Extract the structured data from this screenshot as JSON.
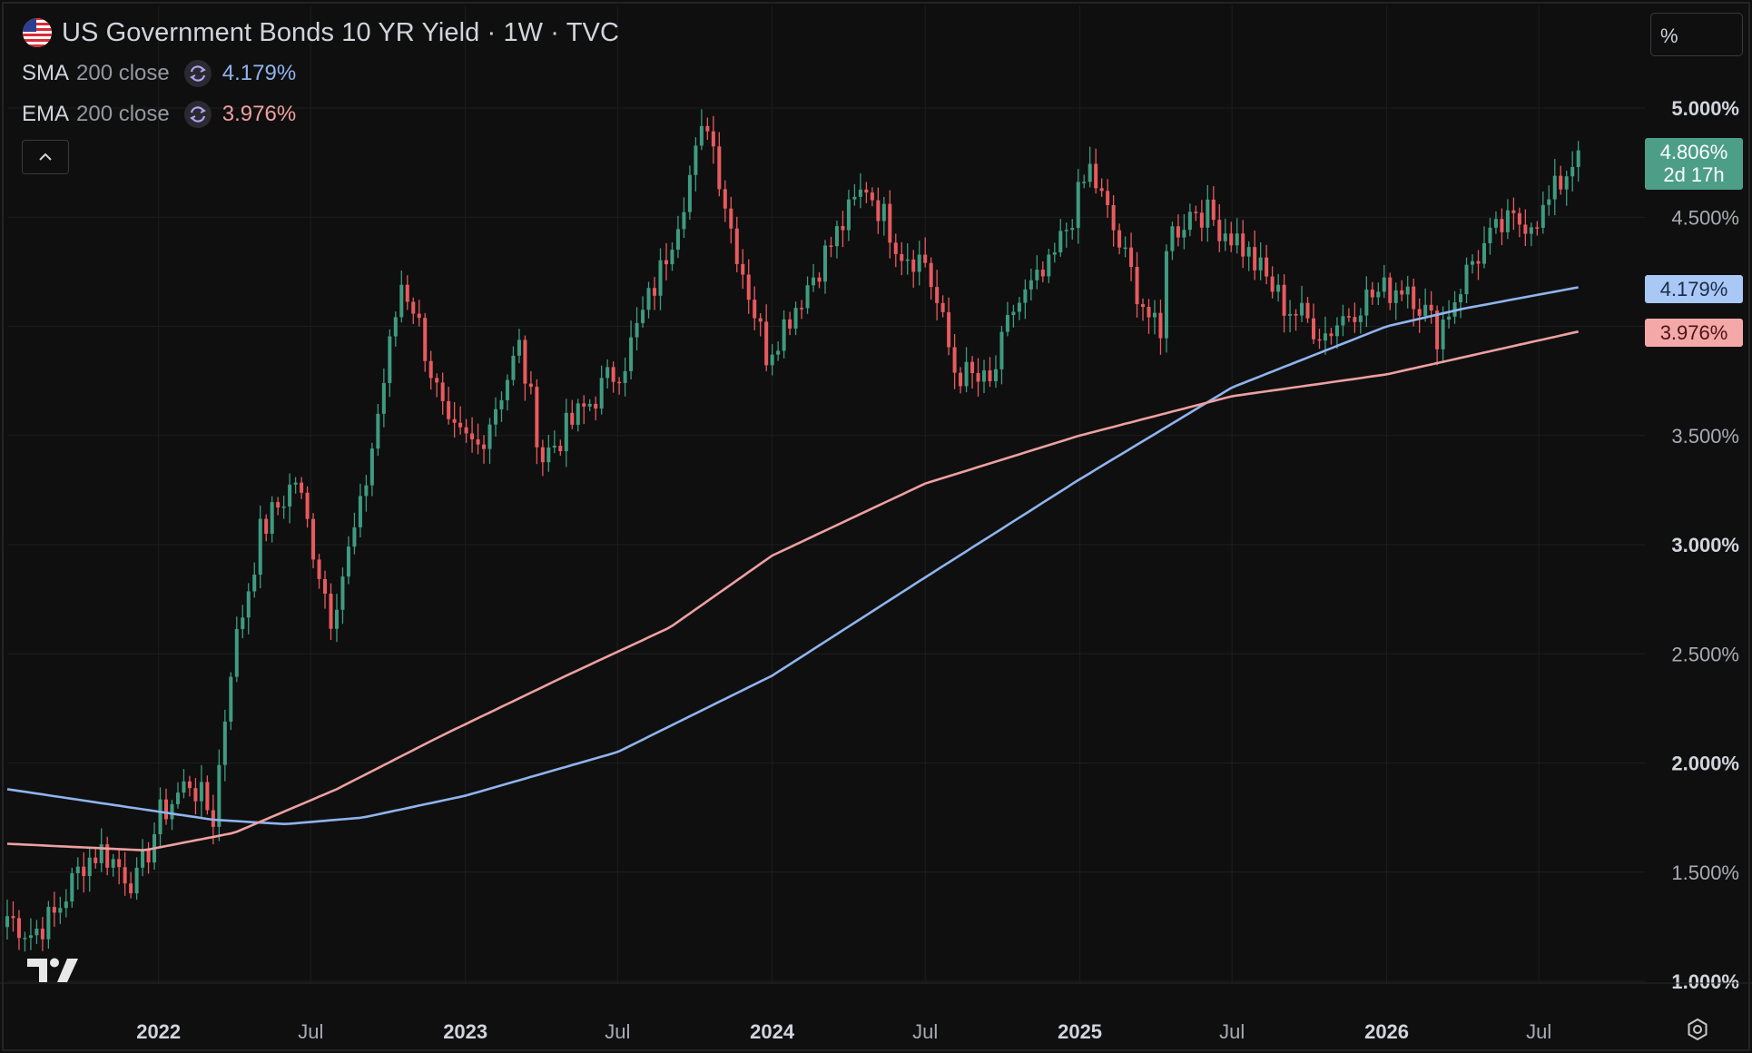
{
  "header": {
    "title": "US Government Bonds 10 YR Yield · 1W · TVC",
    "flag_icon": "us-flag-icon"
  },
  "indicators": [
    {
      "name": "SMA",
      "params": "200 close",
      "value": "4.179%",
      "color": "#8fb4ee",
      "icon": "sync-icon"
    },
    {
      "name": "EMA",
      "params": "200 close",
      "value": "3.976%",
      "color": "#eea0a0",
      "icon": "sync-icon"
    }
  ],
  "controls": {
    "collapse_icon": "chevron-up-icon",
    "unit_label": "%",
    "settings_icon": "gear-icon",
    "logo_icon": "tradingview-logo-icon"
  },
  "price_badge": {
    "value": "4.806%",
    "countdown": "2d 17h",
    "color": "#4c9f86"
  },
  "sma_badge": {
    "value": "4.179%"
  },
  "ema_badge": {
    "value": "3.976%"
  },
  "colors": {
    "background": "#0f0f0f",
    "grid": "#1e1e1e",
    "up": "#3f9b80",
    "down": "#e85a5f",
    "sma": "#8fb4ee",
    "ema": "#eea0a0"
  },
  "chart_data": {
    "type": "candlestick",
    "interval": "1W",
    "ylim": [
      1.0,
      5.0
    ],
    "y_ticks": [
      "1.000%",
      "1.500%",
      "2.000%",
      "2.500%",
      "3.000%",
      "3.500%",
      "4.000%",
      "4.500%",
      "5.000%"
    ],
    "y_tick_bold": [
      true,
      false,
      true,
      false,
      true,
      false,
      false,
      false,
      true
    ],
    "x_ticks": [
      {
        "label": "2022",
        "date": "2022-01-01",
        "bold": true
      },
      {
        "label": "Jul",
        "date": "2022-07-01",
        "bold": false
      },
      {
        "label": "2023",
        "date": "2023-01-01",
        "bold": true
      },
      {
        "label": "Jul",
        "date": "2023-07-01",
        "bold": false
      },
      {
        "label": "2024",
        "date": "2024-01-01",
        "bold": true
      },
      {
        "label": "Jul",
        "date": "2024-07-01",
        "bold": false
      },
      {
        "label": "2025",
        "date": "2025-01-01",
        "bold": true
      },
      {
        "label": "Jul",
        "date": "2025-07-01",
        "bold": false
      },
      {
        "label": "2026",
        "date": "2026-01-01",
        "bold": true
      },
      {
        "label": "Jul",
        "date": "2026-07-01",
        "bold": false
      }
    ],
    "x_range": [
      "2021-07-05",
      "2026-12-26"
    ],
    "first_bar": "2021-07-05",
    "close_anchors": [
      [
        "2021-07-05",
        1.3
      ],
      [
        "2021-08-02",
        1.22
      ],
      [
        "2021-08-30",
        1.3
      ],
      [
        "2021-10-04",
        1.55
      ],
      [
        "2021-10-25",
        1.6
      ],
      [
        "2021-12-06",
        1.45
      ],
      [
        "2022-01-03",
        1.76
      ],
      [
        "2022-02-07",
        1.92
      ],
      [
        "2022-03-07",
        1.75
      ],
      [
        "2022-03-28",
        2.45
      ],
      [
        "2022-05-02",
        3.05
      ],
      [
        "2022-06-13",
        3.3
      ],
      [
        "2022-07-25",
        2.68
      ],
      [
        "2022-08-29",
        3.15
      ],
      [
        "2022-10-17",
        4.2
      ],
      [
        "2022-10-31",
        4.1
      ],
      [
        "2022-12-12",
        3.5
      ],
      [
        "2023-01-16",
        3.45
      ],
      [
        "2023-03-06",
        3.9
      ],
      [
        "2023-04-03",
        3.4
      ],
      [
        "2023-05-29",
        3.65
      ],
      [
        "2023-07-10",
        3.85
      ],
      [
        "2023-08-21",
        4.25
      ],
      [
        "2023-10-16",
        4.95
      ],
      [
        "2023-11-13",
        4.45
      ],
      [
        "2023-12-25",
        3.88
      ],
      [
        "2024-01-29",
        4.1
      ],
      [
        "2024-04-22",
        4.65
      ],
      [
        "2024-06-03",
        4.35
      ],
      [
        "2024-07-01",
        4.3
      ],
      [
        "2024-08-05",
        3.8
      ],
      [
        "2024-09-16",
        3.72
      ],
      [
        "2024-10-14",
        4.08
      ],
      [
        "2024-11-25",
        4.25
      ],
      [
        "2025-01-13",
        4.72
      ],
      [
        "2025-02-24",
        4.3
      ],
      [
        "2025-04-07",
        3.92
      ],
      [
        "2025-04-14",
        4.4
      ],
      [
        "2025-05-19",
        4.55
      ],
      [
        "2025-07-07",
        4.4
      ],
      [
        "2025-09-01",
        4.1
      ],
      [
        "2025-10-20",
        3.97
      ],
      [
        "2025-12-01",
        4.12
      ],
      [
        "2026-01-26",
        4.2
      ],
      [
        "2026-03-02",
        3.97
      ],
      [
        "2026-04-13",
        4.3
      ],
      [
        "2026-05-18",
        4.45
      ],
      [
        "2026-07-06",
        4.52
      ],
      [
        "2026-08-17",
        4.806
      ]
    ],
    "sma_anchors": [
      [
        "2021-07-05",
        1.88
      ],
      [
        "2022-03-07",
        1.74
      ],
      [
        "2022-06-01",
        1.72
      ],
      [
        "2022-09-01",
        1.75
      ],
      [
        "2023-01-01",
        1.85
      ],
      [
        "2023-07-01",
        2.05
      ],
      [
        "2024-01-01",
        2.4
      ],
      [
        "2024-07-01",
        2.85
      ],
      [
        "2025-01-01",
        3.3
      ],
      [
        "2025-07-01",
        3.72
      ],
      [
        "2026-01-01",
        4.0
      ],
      [
        "2026-04-01",
        4.08
      ],
      [
        "2026-08-17",
        4.179
      ]
    ],
    "ema_anchors": [
      [
        "2021-07-05",
        1.63
      ],
      [
        "2021-12-15",
        1.6
      ],
      [
        "2022-04-01",
        1.68
      ],
      [
        "2022-08-01",
        1.88
      ],
      [
        "2022-12-01",
        2.12
      ],
      [
        "2023-05-01",
        2.4
      ],
      [
        "2023-09-01",
        2.62
      ],
      [
        "2024-01-01",
        2.95
      ],
      [
        "2024-07-01",
        3.28
      ],
      [
        "2025-01-01",
        3.5
      ],
      [
        "2025-07-01",
        3.68
      ],
      [
        "2026-01-01",
        3.78
      ],
      [
        "2026-08-17",
        3.976
      ]
    ]
  }
}
